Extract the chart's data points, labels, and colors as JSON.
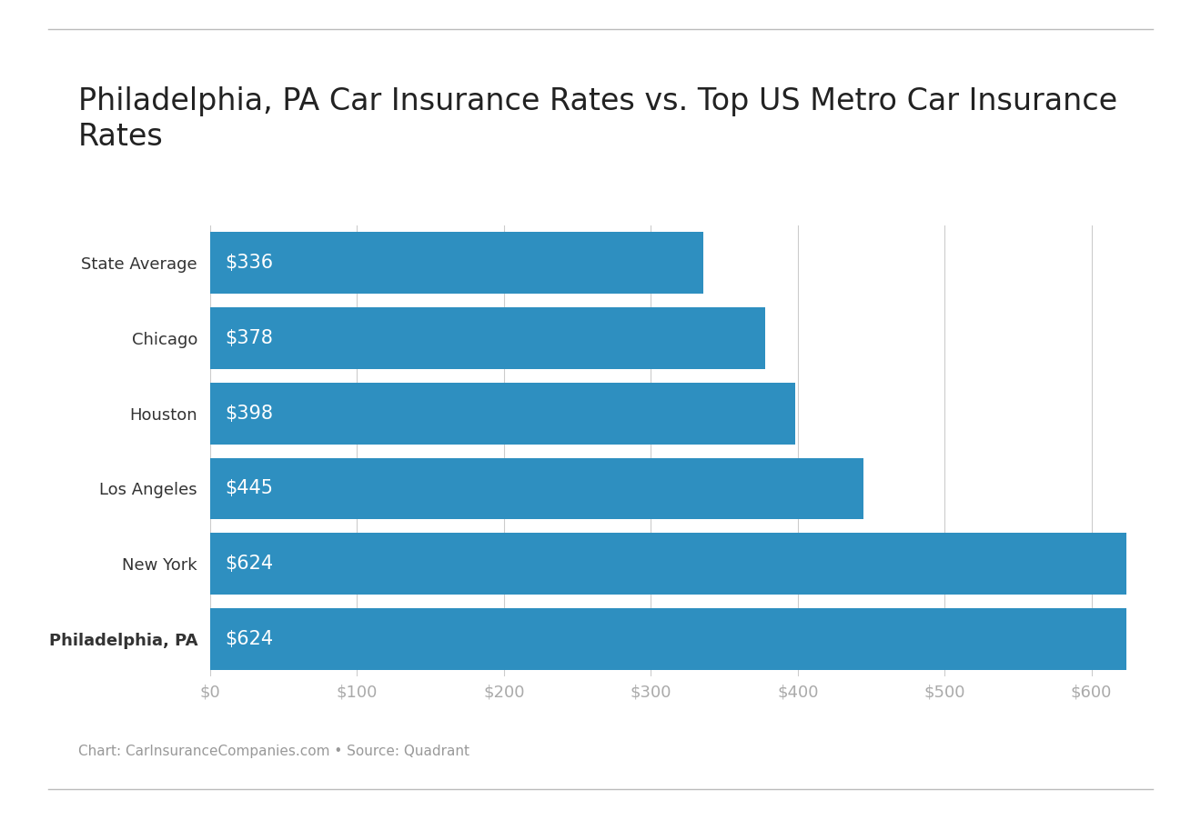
{
  "title": "Philadelphia, PA Car Insurance Rates vs. Top US Metro Car Insurance\nRates",
  "categories": [
    "State Average",
    "Chicago",
    "Houston",
    "Los Angeles",
    "New York",
    "Philadelphia, PA"
  ],
  "values": [
    336,
    378,
    398,
    445,
    624,
    624
  ],
  "bar_color": "#2e8fc0",
  "label_color": "#ffffff",
  "bar_labels": [
    "$336",
    "$378",
    "$398",
    "$445",
    "$624",
    "$624"
  ],
  "xlim": [
    0,
    650
  ],
  "xtick_values": [
    0,
    100,
    200,
    300,
    400,
    500,
    600
  ],
  "xtick_labels": [
    "$0",
    "$100",
    "$200",
    "$300",
    "$400",
    "$500",
    "$600"
  ],
  "footer": "Chart: CarInsuranceCompanies.com • Source: Quadrant",
  "title_fontsize": 24,
  "label_fontsize": 15,
  "tick_fontsize": 13,
  "footer_fontsize": 11,
  "bold_label": "Philadelphia, PA",
  "background_color": "#ffffff",
  "bar_height": 0.82,
  "grid_color": "#cccccc",
  "separator_color": "#bbbbbb",
  "ytick_color": "#333333",
  "xtick_color": "#aaaaaa"
}
